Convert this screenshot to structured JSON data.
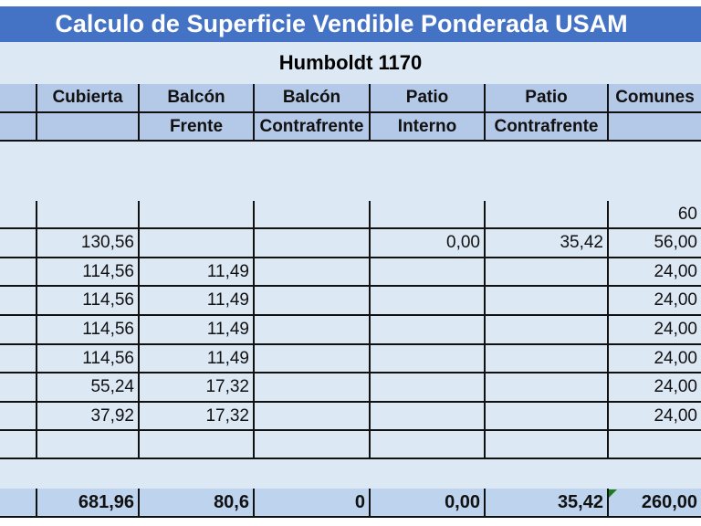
{
  "title": "Calculo de Superficie Vendible Ponderada USAM",
  "subtitle": "Humboldt 1170",
  "headers1": [
    "",
    "Cubierta",
    "Balcón",
    "Balcón",
    "Patio",
    "Patio",
    "Comunes"
  ],
  "headers2": [
    "",
    "",
    "Frente",
    "Contrafrente",
    "Interno",
    "Contrafrente",
    ""
  ],
  "rows": [
    [
      "",
      "",
      "",
      "",
      "",
      "",
      "60"
    ],
    [
      "",
      "130,56",
      "",
      "",
      "0,00",
      "35,42",
      "56,00"
    ],
    [
      "",
      "114,56",
      "11,49",
      "",
      "",
      "",
      "24,00"
    ],
    [
      "",
      "114,56",
      "11,49",
      "",
      "",
      "",
      "24,00"
    ],
    [
      "",
      "114,56",
      "11,49",
      "",
      "",
      "",
      "24,00"
    ],
    [
      "",
      "114,56",
      "11,49",
      "",
      "",
      "",
      "24,00"
    ],
    [
      "",
      "55,24",
      "17,32",
      "",
      "",
      "",
      "24,00"
    ],
    [
      "",
      "37,92",
      "17,32",
      "",
      "",
      "",
      "24,00"
    ],
    [
      "",
      "",
      "",
      "",
      "",
      "",
      ""
    ]
  ],
  "totals": [
    "",
    "681,96",
    "80,6",
    "0",
    "0,00",
    "35,42",
    "260,00"
  ],
  "colors": {
    "title_bg": "#4472c4",
    "header_bg": "#b4c8e8",
    "cell_bg": "#dde8f5"
  }
}
